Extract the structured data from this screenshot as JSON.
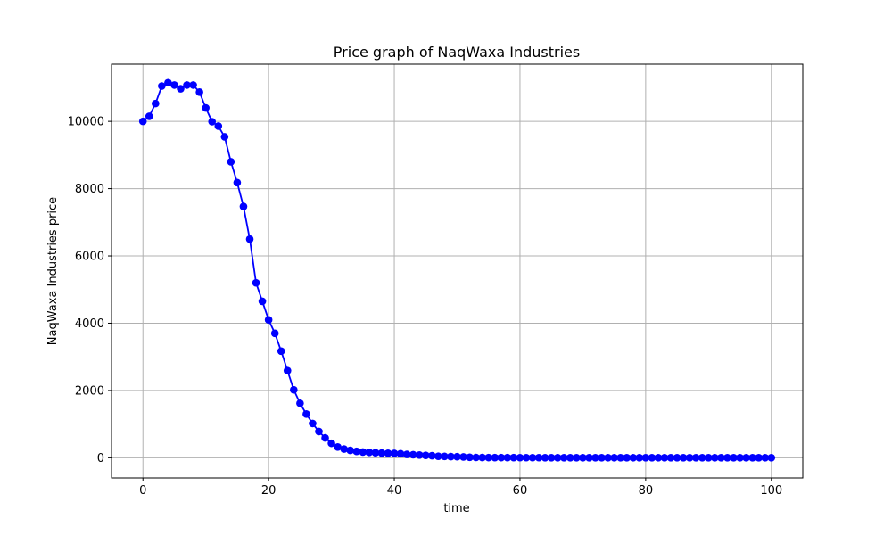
{
  "chart_data": {
    "type": "line",
    "title": "Price graph of NaqWaxa Industries",
    "xlabel": "time",
    "ylabel": "NaqWaxa Industries price",
    "xlim": [
      -5,
      105
    ],
    "ylim": [
      -600,
      11700
    ],
    "xticks": [
      0,
      20,
      40,
      60,
      80,
      100
    ],
    "yticks": [
      0,
      2000,
      4000,
      6000,
      8000,
      10000
    ],
    "grid": true,
    "series": [
      {
        "color": "#0000ff",
        "marker": "circle",
        "x": [
          0,
          1,
          2,
          3,
          4,
          5,
          6,
          7,
          8,
          9,
          10,
          11,
          12,
          13,
          14,
          15,
          16,
          17,
          18,
          19,
          20,
          21,
          22,
          23,
          24,
          25,
          26,
          27,
          28,
          29,
          30,
          31,
          32,
          33,
          34,
          35,
          36,
          37,
          38,
          39,
          40,
          41,
          42,
          43,
          44,
          45,
          46,
          47,
          48,
          49,
          50,
          51,
          52,
          53,
          54,
          55,
          56,
          57,
          58,
          59,
          60,
          61,
          62,
          63,
          64,
          65,
          66,
          67,
          68,
          69,
          70,
          71,
          72,
          73,
          74,
          75,
          76,
          77,
          78,
          79,
          80,
          81,
          82,
          83,
          84,
          85,
          86,
          87,
          88,
          89,
          90,
          91,
          92,
          93,
          94,
          95,
          96,
          97,
          98,
          99,
          100
        ],
        "values": [
          10000,
          10150,
          10530,
          11050,
          11150,
          11080,
          10970,
          11080,
          11080,
          10870,
          10400,
          9990,
          9860,
          9540,
          8800,
          8180,
          7470,
          6500,
          5200,
          4650,
          4100,
          3700,
          3170,
          2590,
          2020,
          1620,
          1300,
          1020,
          780,
          590,
          430,
          320,
          260,
          220,
          190,
          170,
          160,
          150,
          140,
          135,
          130,
          120,
          100,
          90,
          80,
          70,
          60,
          45,
          40,
          35,
          30,
          25,
          15,
          10,
          8,
          6,
          5,
          5,
          4,
          4,
          3,
          3,
          3,
          3,
          2,
          2,
          2,
          2,
          2,
          2,
          2,
          2,
          2,
          1,
          1,
          1,
          1,
          1,
          1,
          1,
          1,
          1,
          1,
          1,
          1,
          1,
          1,
          1,
          1,
          1,
          1,
          1,
          1,
          1,
          1,
          1,
          1,
          1,
          1,
          1,
          1
        ]
      }
    ]
  }
}
